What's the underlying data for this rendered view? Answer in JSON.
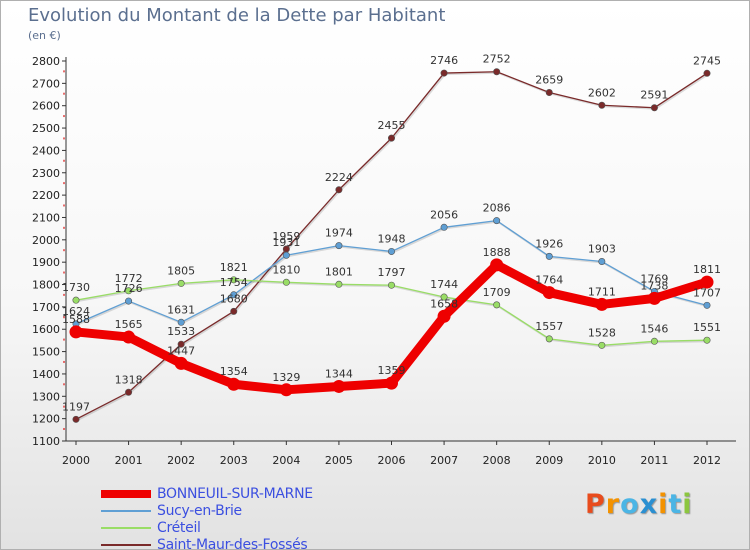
{
  "header": {
    "title": "Evolution du Montant de la Dette par Habitant",
    "unit": "(en €)"
  },
  "logo": {
    "text": "Proxiti",
    "colors": [
      "#e84c1d",
      "#f39200",
      "#4bb5e5",
      "#2a8fd1",
      "#f39200",
      "#4bb5e5",
      "#8cc63f"
    ]
  },
  "chart_data": {
    "type": "line",
    "title": "Evolution du Montant de la Dette par Habitant",
    "ylabel": "(en €)",
    "xlabel": "",
    "x": [
      "2000",
      "2001",
      "2002",
      "2003",
      "2004",
      "2005",
      "2006",
      "2007",
      "2008",
      "2009",
      "2010",
      "2011",
      "2012"
    ],
    "ylim": [
      1100,
      2800
    ],
    "yticks": [
      1100,
      1200,
      1300,
      1400,
      1500,
      1600,
      1700,
      1800,
      1900,
      2000,
      2100,
      2200,
      2300,
      2400,
      2500,
      2600,
      2700,
      2800
    ],
    "grid": false,
    "legend": "bottom-left",
    "series": [
      {
        "name": "BONNEUIL-SUR-MARNE",
        "color": "#ee0000",
        "values": [
          1588,
          1565,
          1447,
          1354,
          1329,
          1344,
          1359,
          1658,
          1888,
          1764,
          1711,
          1738,
          1811
        ]
      },
      {
        "name": "Sucy-en-Brie",
        "color": "#5f9fd4",
        "values": [
          1624,
          1726,
          1631,
          1754,
          1931,
          1974,
          1948,
          2056,
          2086,
          1926,
          1903,
          1769,
          1707
        ]
      },
      {
        "name": "Créteil",
        "color": "#99dd66",
        "values": [
          1730,
          1772,
          1805,
          1821,
          1810,
          1801,
          1797,
          1744,
          1709,
          1557,
          1528,
          1546,
          1551
        ]
      },
      {
        "name": "Saint-Maur-des-Fossés",
        "color": "#7a2a2a",
        "values": [
          1197,
          1318,
          1533,
          1680,
          1959,
          2224,
          2455,
          2746,
          2752,
          2659,
          2602,
          2591,
          2745
        ]
      }
    ]
  }
}
